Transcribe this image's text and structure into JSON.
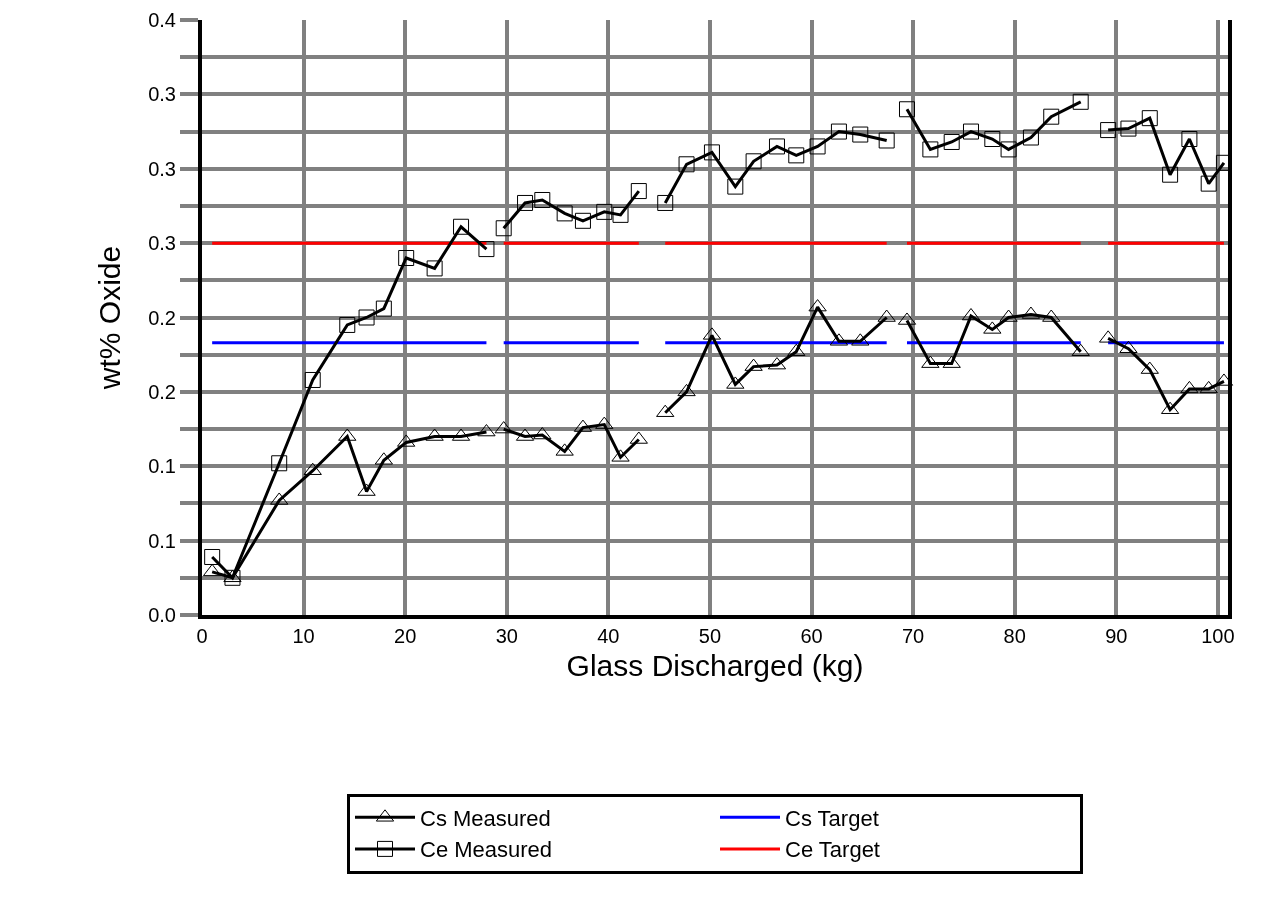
{
  "chart_data": {
    "type": "line",
    "xlabel": "Glass Discharged (kg)",
    "ylabel": "wt% Oxide",
    "xlim": [
      0,
      101
    ],
    "xticks": [
      0,
      10,
      20,
      30,
      40,
      50,
      60,
      70,
      80,
      90,
      100
    ],
    "ylim": [
      0,
      0.4
    ],
    "yticks": [
      {
        "value": 0,
        "label": "0.0"
      },
      {
        "value": 0.025,
        "label": null
      },
      {
        "value": 0.05,
        "label": "0.1"
      },
      {
        "value": 0.075,
        "label": null
      },
      {
        "value": 0.1,
        "label": "0.1"
      },
      {
        "value": 0.125,
        "label": null
      },
      {
        "value": 0.15,
        "label": "0.2"
      },
      {
        "value": 0.175,
        "label": null
      },
      {
        "value": 0.2,
        "label": "0.2"
      },
      {
        "value": 0.225,
        "label": null
      },
      {
        "value": 0.25,
        "label": "0.3"
      },
      {
        "value": 0.275,
        "label": null
      },
      {
        "value": 0.3,
        "label": "0.3"
      },
      {
        "value": 0.325,
        "label": null
      },
      {
        "value": 0.35,
        "label": "0.3"
      },
      {
        "value": 0.375,
        "label": null
      },
      {
        "value": 0.4,
        "label": "0.4"
      }
    ],
    "grid": true,
    "legend": "bottom",
    "line_style": "solid",
    "series": [
      {
        "name": "Cs Measured",
        "color": "#000000",
        "marker": "triangle",
        "x": [
          1.0,
          3.0,
          7.6,
          10.9,
          14.3,
          16.2,
          17.9,
          20.1,
          22.9,
          25.5,
          28.0,
          28.8,
          29.7,
          31.8,
          33.5,
          35.7,
          37.5,
          39.6,
          41.2,
          43.0,
          44.3,
          45.6,
          47.7,
          50.2,
          52.5,
          54.3,
          56.6,
          58.5,
          60.6,
          62.7,
          64.8,
          67.4,
          68.4,
          69.4,
          71.7,
          73.8,
          75.7,
          77.8,
          79.4,
          81.6,
          83.6,
          86.5,
          87.8,
          89.2,
          91.2,
          93.3,
          95.3,
          97.2,
          99.1,
          100.6
        ],
        "values": [
          0.029,
          0.025,
          0.077,
          0.097,
          0.12,
          0.083,
          0.104,
          0.116,
          0.12,
          0.12,
          0.123,
          null,
          0.125,
          0.12,
          0.121,
          0.11,
          0.126,
          0.128,
          0.106,
          0.118,
          null,
          0.136,
          0.15,
          0.188,
          0.155,
          0.167,
          0.168,
          0.177,
          0.207,
          0.184,
          0.184,
          0.2,
          null,
          0.198,
          0.169,
          0.169,
          0.201,
          0.192,
          0.2,
          0.202,
          0.2,
          0.177,
          null,
          0.186,
          0.179,
          0.165,
          0.138,
          0.152,
          0.152,
          0.157
        ]
      },
      {
        "name": "Cs Target",
        "color": "#0000ff",
        "marker": "none",
        "x": [
          1.0,
          28.0,
          28.8,
          29.7,
          43.0,
          44.3,
          45.6,
          67.4,
          68.4,
          69.4,
          86.5,
          87.8,
          89.2,
          100.6
        ],
        "values": [
          0.183,
          0.183,
          null,
          0.183,
          0.183,
          null,
          0.183,
          0.183,
          null,
          0.183,
          0.183,
          null,
          0.183,
          0.183
        ]
      },
      {
        "name": "Ce Measured",
        "color": "#000000",
        "marker": "square",
        "x": [
          1.0,
          3.0,
          7.6,
          10.9,
          14.3,
          16.2,
          17.9,
          20.1,
          22.9,
          25.5,
          28.0,
          28.8,
          29.7,
          31.8,
          33.5,
          35.7,
          37.5,
          39.6,
          41.2,
          43.0,
          44.3,
          45.6,
          47.7,
          50.2,
          52.5,
          54.3,
          56.6,
          58.5,
          60.6,
          62.7,
          64.8,
          67.4,
          68.4,
          69.4,
          71.7,
          73.8,
          75.7,
          77.8,
          79.4,
          81.6,
          83.6,
          86.5,
          87.8,
          89.2,
          91.2,
          93.3,
          95.3,
          97.2,
          99.1,
          100.6
        ],
        "values": [
          0.039,
          0.025,
          0.102,
          0.158,
          0.195,
          0.2,
          0.206,
          0.24,
          0.233,
          0.261,
          0.246,
          null,
          0.26,
          0.277,
          0.279,
          0.27,
          0.265,
          0.271,
          0.269,
          0.285,
          null,
          0.277,
          0.303,
          0.311,
          0.288,
          0.305,
          0.315,
          0.309,
          0.315,
          0.325,
          0.323,
          0.319,
          null,
          0.34,
          0.313,
          0.318,
          0.325,
          0.32,
          0.313,
          0.321,
          0.335,
          0.345,
          null,
          0.326,
          0.327,
          0.334,
          0.296,
          0.32,
          0.29,
          0.304
        ]
      },
      {
        "name": "Ce Target",
        "color": "#ff0000",
        "marker": "none",
        "x": [
          1.0,
          28.0,
          28.8,
          29.7,
          43.0,
          44.3,
          45.6,
          67.4,
          68.4,
          69.4,
          86.5,
          87.8,
          89.2,
          100.6
        ],
        "values": [
          0.25,
          0.25,
          null,
          0.25,
          0.25,
          null,
          0.25,
          0.25,
          null,
          0.25,
          0.25,
          null,
          0.25,
          0.25
        ]
      }
    ]
  }
}
